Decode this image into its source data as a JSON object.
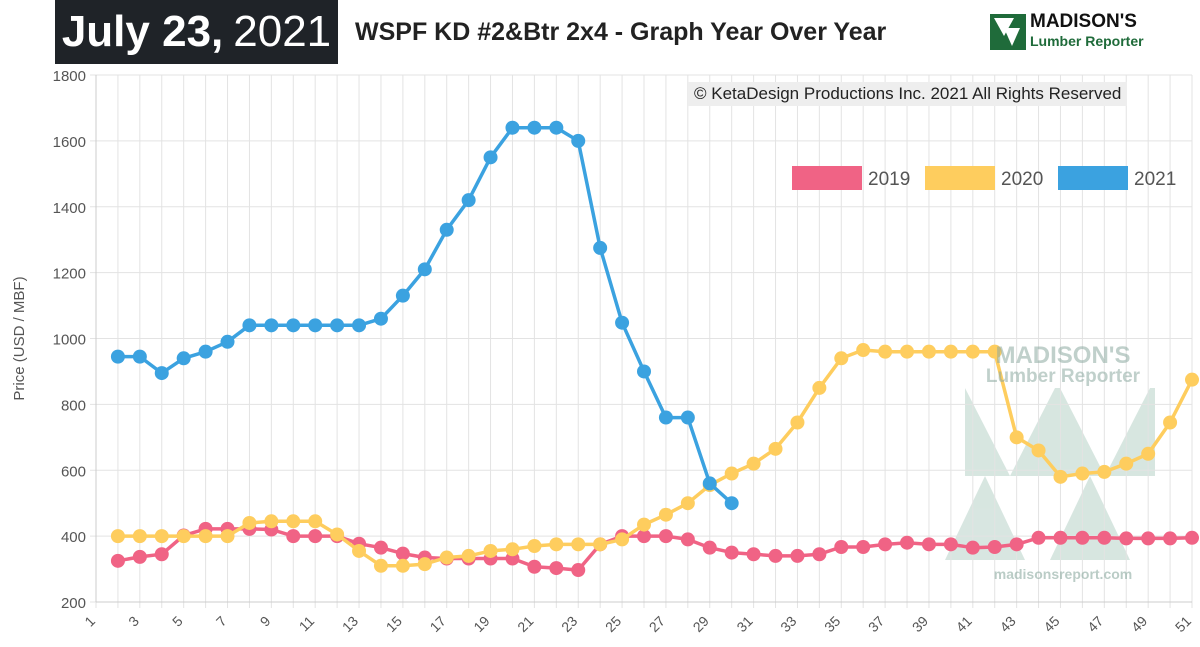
{
  "header": {
    "date_month_day": "July 23,",
    "date_year": "2021",
    "title": "WSPF KD #2&Btr 2x4 - Graph Year Over Year"
  },
  "logo": {
    "word": "MADISON'S",
    "sub": "Lumber Reporter"
  },
  "copyright": "© KetaDesign Productions Inc. 2021 All Rights Reserved",
  "watermark": {
    "word": "MADISON'S",
    "sub": "Lumber Reporter",
    "url": "madisonsreport.com"
  },
  "chart_data": {
    "type": "line",
    "ylabel": "Price (USD / MBF)",
    "xlabel": "",
    "ylim": [
      200,
      1800
    ],
    "y_ticks": [
      200,
      400,
      600,
      800,
      1000,
      1200,
      1400,
      1600,
      1800
    ],
    "x_range": [
      1,
      51
    ],
    "x_tick_labels": [
      1,
      3,
      5,
      7,
      9,
      11,
      13,
      15,
      17,
      19,
      21,
      23,
      25,
      27,
      29,
      31,
      33,
      35,
      37,
      39,
      41,
      43,
      45,
      47,
      49,
      51
    ],
    "grid": true,
    "legend_position": "top-right",
    "series": [
      {
        "name": "2019",
        "color": "#f06385",
        "x": [
          2,
          3,
          4,
          5,
          6,
          7,
          8,
          9,
          10,
          11,
          12,
          13,
          14,
          15,
          16,
          17,
          18,
          19,
          20,
          21,
          22,
          23,
          24,
          25,
          26,
          27,
          28,
          29,
          30,
          31,
          32,
          33,
          34,
          35,
          36,
          37,
          38,
          39,
          40,
          41,
          42,
          43,
          44,
          45,
          46,
          47,
          48,
          49,
          50,
          51
        ],
        "values": [
          325,
          337,
          345,
          402,
          422,
          422,
          422,
          420,
          400,
          400,
          400,
          377,
          365,
          347,
          335,
          332,
          332,
          332,
          332,
          307,
          303,
          297,
          375,
          400,
          400,
          400,
          390,
          365,
          350,
          345,
          340,
          340,
          345,
          367,
          367,
          375,
          380,
          375,
          375,
          365,
          367,
          375,
          395,
          395,
          395,
          395,
          393,
          393,
          393,
          395
        ]
      },
      {
        "name": "2020",
        "color": "#fecd5e",
        "x": [
          2,
          3,
          4,
          5,
          6,
          7,
          8,
          9,
          10,
          11,
          12,
          13,
          14,
          15,
          16,
          17,
          18,
          19,
          20,
          21,
          22,
          23,
          24,
          25,
          26,
          27,
          28,
          29,
          30,
          31,
          32,
          33,
          34,
          35,
          36,
          37,
          38,
          39,
          40,
          41,
          42,
          43,
          44,
          45,
          46,
          47,
          48,
          49,
          50,
          51
        ],
        "values": [
          400,
          400,
          400,
          400,
          400,
          400,
          440,
          445,
          445,
          445,
          405,
          355,
          310,
          310,
          315,
          335,
          340,
          355,
          360,
          370,
          375,
          375,
          375,
          390,
          435,
          465,
          500,
          555,
          590,
          620,
          665,
          745,
          850,
          940,
          965,
          960,
          960,
          960,
          960,
          960,
          960,
          700,
          660,
          580,
          590,
          595,
          620,
          650,
          745,
          875
        ]
      },
      {
        "name": "2021",
        "color": "#3ba2e0",
        "x": [
          2,
          3,
          4,
          5,
          6,
          7,
          8,
          9,
          10,
          11,
          12,
          13,
          14,
          15,
          16,
          17,
          18,
          19,
          20,
          21,
          22,
          23,
          24,
          25,
          26,
          27,
          28,
          29,
          30
        ],
        "values": [
          945,
          945,
          895,
          940,
          960,
          990,
          1040,
          1040,
          1040,
          1040,
          1040,
          1040,
          1060,
          1130,
          1210,
          1330,
          1420,
          1550,
          1640,
          1640,
          1640,
          1600,
          1275,
          1048,
          900,
          760,
          760,
          560,
          500
        ]
      }
    ]
  }
}
